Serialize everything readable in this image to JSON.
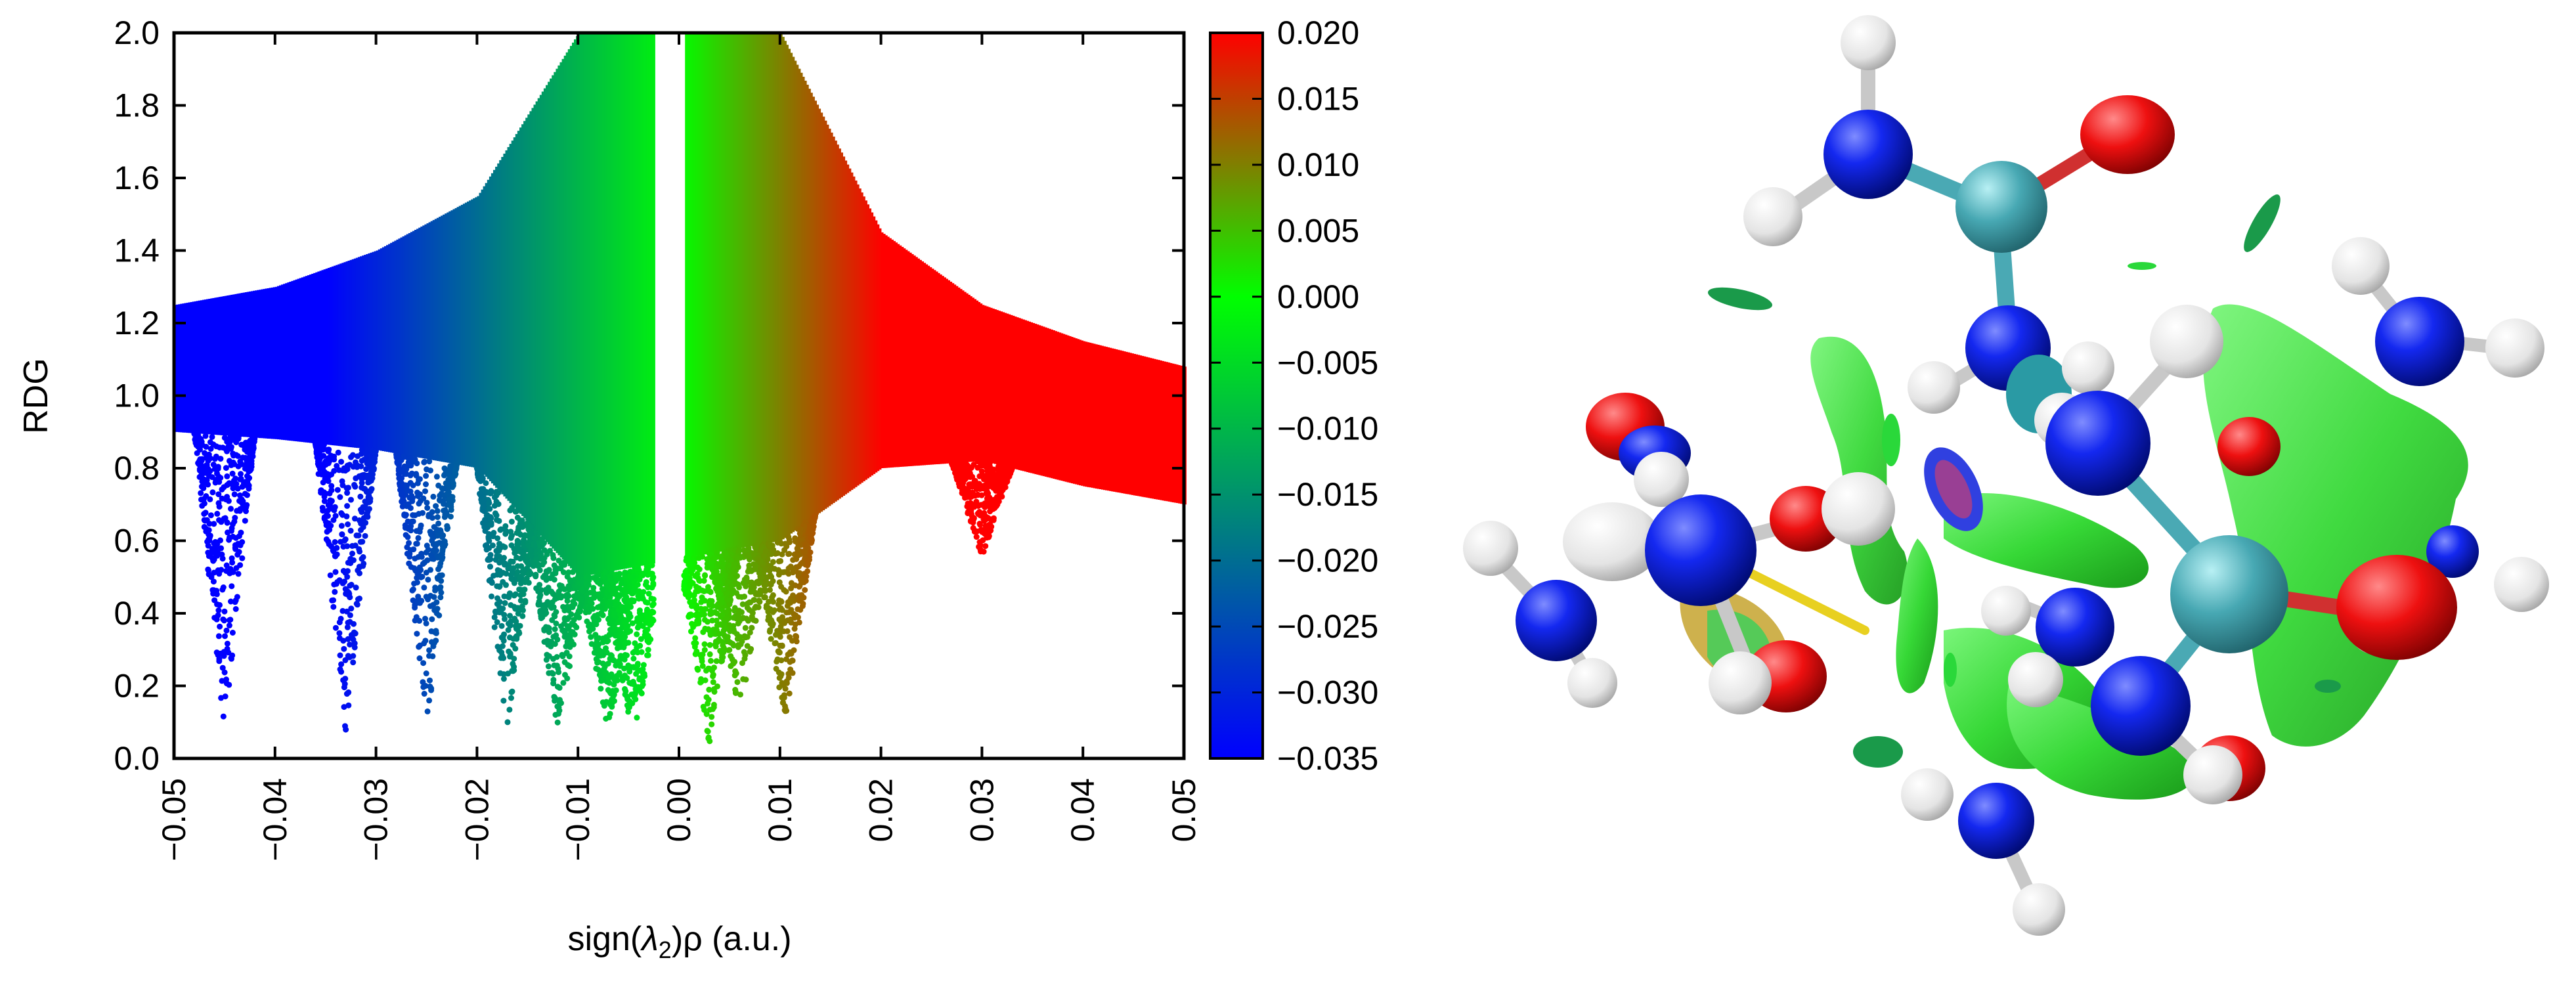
{
  "chart_data": {
    "type": "scatter",
    "title": "",
    "xlabel": {
      "prefix": "sign(",
      "symbol": "λ",
      "subscript": "2",
      "suffix": ")ρ (a.u.)"
    },
    "ylabel": "RDG",
    "xlim": [
      -0.05,
      0.05
    ],
    "ylim": [
      0.0,
      2.0
    ],
    "xticks": [
      "−0.05",
      "−0.04",
      "−0.03",
      "−0.02",
      "−0.01",
      "0.00",
      "0.01",
      "0.02",
      "0.03",
      "0.04",
      "0.05"
    ],
    "xtick_values": [
      -0.05,
      -0.04,
      -0.03,
      -0.02,
      -0.01,
      0.0,
      0.01,
      0.02,
      0.03,
      0.04,
      0.05
    ],
    "yticks": [
      "0.0",
      "0.2",
      "0.4",
      "0.6",
      "0.8",
      "1.0",
      "1.2",
      "1.4",
      "1.6",
      "1.8",
      "2.0"
    ],
    "ytick_values": [
      0.0,
      0.2,
      0.4,
      0.6,
      0.8,
      1.0,
      1.2,
      1.4,
      1.6,
      1.8,
      2.0
    ],
    "grid": false,
    "colorbar": {
      "position": "right",
      "range": [
        -0.035,
        0.02
      ],
      "ticks": [
        "0.020",
        "0.015",
        "0.010",
        "0.005",
        "0.000",
        "−0.005",
        "−0.010",
        "−0.015",
        "−0.020",
        "−0.025",
        "−0.030",
        "−0.035"
      ],
      "tick_values": [
        0.02,
        0.015,
        0.01,
        0.005,
        0.0,
        -0.005,
        -0.01,
        -0.015,
        -0.02,
        -0.025,
        -0.03,
        -0.035
      ],
      "colors": {
        "low": "#0000ff",
        "mid": "#00ff00",
        "high": "#ff0000"
      }
    },
    "scatter_envelope": [
      {
        "x": -0.05,
        "rdg_min": 0.9,
        "rdg_max": 1.25
      },
      {
        "x": -0.04,
        "rdg_min": 0.88,
        "rdg_max": 1.3
      },
      {
        "x": -0.03,
        "rdg_min": 0.85,
        "rdg_max": 1.4
      },
      {
        "x": -0.02,
        "rdg_min": 0.8,
        "rdg_max": 1.55
      },
      {
        "x": -0.01,
        "rdg_min": 0.5,
        "rdg_max": 2.0
      },
      {
        "x": 0.01,
        "rdg_min": 0.6,
        "rdg_max": 2.0
      },
      {
        "x": 0.02,
        "rdg_min": 0.8,
        "rdg_max": 1.45
      },
      {
        "x": 0.03,
        "rdg_min": 0.82,
        "rdg_max": 1.25
      },
      {
        "x": 0.04,
        "rdg_min": 0.75,
        "rdg_max": 1.15
      },
      {
        "x": 0.05,
        "rdg_min": 0.7,
        "rdg_max": 1.08
      }
    ],
    "spikes": [
      {
        "x": -0.045,
        "rdg_min": 0.07
      },
      {
        "x": -0.033,
        "rdg_min": 0.07
      },
      {
        "x": -0.025,
        "rdg_min": 0.07
      },
      {
        "x": -0.017,
        "rdg_min": 0.08
      },
      {
        "x": -0.012,
        "rdg_min": 0.08
      },
      {
        "x": -0.007,
        "rdg_min": 0.07
      },
      {
        "x": -0.0045,
        "rdg_min": 0.04
      },
      {
        "x": 0.003,
        "rdg_min": 0.04
      },
      {
        "x": 0.006,
        "rdg_min": 0.12
      },
      {
        "x": 0.0105,
        "rdg_min": 0.1
      },
      {
        "x": 0.03,
        "rdg_min": 0.55
      }
    ],
    "gap": [
      -0.0025,
      0.0005
    ]
  },
  "molecule_panel": {
    "atom_colors": {
      "nitrogen": "#1020e0",
      "hydrogen": "#ececec",
      "oxygen": "#e01010",
      "carbon": "#4aa9b4"
    },
    "isosurface_color": "#3ee03a",
    "isosurface_repulsive_color": "#c9a93a"
  }
}
